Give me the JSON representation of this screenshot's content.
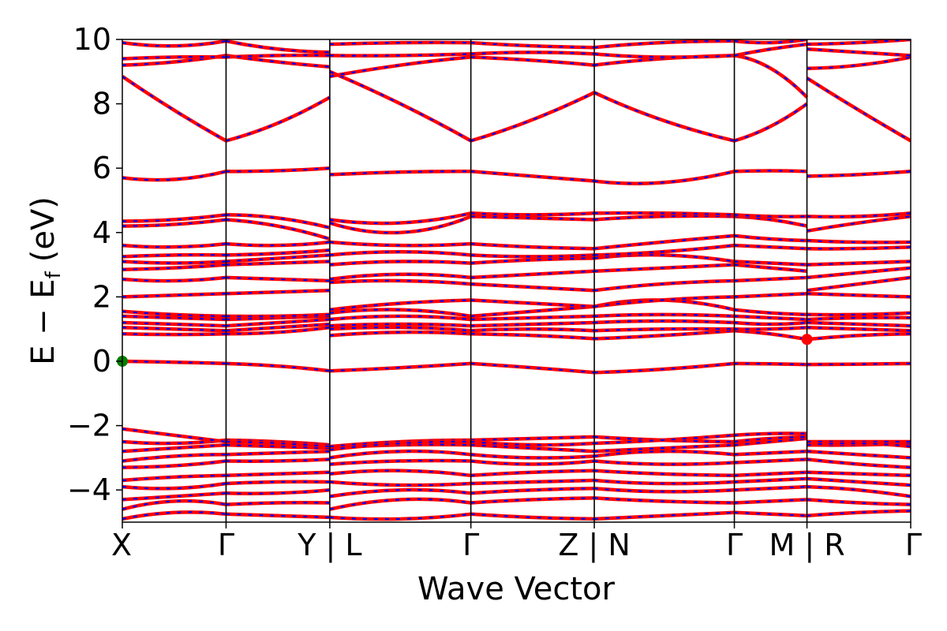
{
  "chart_data": {
    "type": "line",
    "xlabel": "Wave Vector",
    "ylabel": "E − E",
    "ylabel_sub": "f",
    "ylabel_unit": "(eV)",
    "ylim": [
      -5,
      10
    ],
    "yticks": [
      {
        "value": -4,
        "label": "−4"
      },
      {
        "value": -2,
        "label": "−2"
      },
      {
        "value": 0,
        "label": "0"
      },
      {
        "value": 2,
        "label": "2"
      },
      {
        "value": 4,
        "label": "4"
      },
      {
        "value": 6,
        "label": "6"
      },
      {
        "value": 8,
        "label": "8"
      },
      {
        "value": 10,
        "label": "10"
      }
    ],
    "xlim": [
      0,
      7.6
    ],
    "kpoints": [
      {
        "label": "X",
        "x": 0
      },
      {
        "label": "Γ",
        "x": 1.0
      },
      {
        "label": "Y | L",
        "x": 2.0
      },
      {
        "label": "Γ",
        "x": 3.36
      },
      {
        "label": "Z | N",
        "x": 4.55
      },
      {
        "label": "Γ",
        "x": 5.9
      },
      {
        "label": "M | R",
        "x": 6.6
      },
      {
        "label": "Γ",
        "x": 7.6
      }
    ],
    "vertical_lines": [
      1.0,
      2.0,
      3.36,
      4.55,
      5.9,
      6.6
    ],
    "line_style": {
      "color": "#ff0000",
      "overlay_color": "#0000ff",
      "overlay_dashed": true
    },
    "markers": [
      {
        "x": 0,
        "y": 0.0,
        "color": "#008000",
        "label": "VBM"
      },
      {
        "x": 6.6,
        "y": 0.68,
        "color": "#ff0000",
        "label": "CBM"
      }
    ],
    "segments": [
      {
        "x_start": 0,
        "x_end": 1.0,
        "x_mid": 0.5,
        "bands": [
          [
            -4.9,
            -4.7,
            -4.75
          ],
          [
            -4.6,
            -4.35,
            -4.45
          ],
          [
            -4.3,
            -4.2,
            -4.1
          ],
          [
            -3.9,
            -3.95,
            -3.8
          ],
          [
            -3.7,
            -3.6,
            -3.55
          ],
          [
            -3.3,
            -3.25,
            -3.1
          ],
          [
            -3.1,
            -2.95,
            -2.9
          ],
          [
            -2.8,
            -2.7,
            -2.6
          ],
          [
            -2.5,
            -2.55,
            -2.45
          ],
          [
            -2.1,
            -2.3,
            -2.5
          ],
          [
            0.0,
            -0.03,
            -0.07
          ],
          [
            0.85,
            0.83,
            0.85
          ],
          [
            1.05,
            1.0,
            0.95
          ],
          [
            1.2,
            1.15,
            1.1
          ],
          [
            1.4,
            1.35,
            1.3
          ],
          [
            1.55,
            1.45,
            1.4
          ],
          [
            2.0,
            2.05,
            2.1
          ],
          [
            2.55,
            2.5,
            2.6
          ],
          [
            2.85,
            2.9,
            3.0
          ],
          [
            3.1,
            3.05,
            3.1
          ],
          [
            3.25,
            3.3,
            3.3
          ],
          [
            3.6,
            3.55,
            3.65
          ],
          [
            4.2,
            4.25,
            4.4
          ],
          [
            4.35,
            4.4,
            4.55
          ],
          [
            5.7,
            5.65,
            5.9
          ],
          [
            8.85,
            7.8,
            6.85
          ],
          [
            9.2,
            9.3,
            9.5
          ],
          [
            9.4,
            9.45,
            9.45
          ],
          [
            9.9,
            9.8,
            9.95
          ]
        ]
      },
      {
        "x_start": 1.0,
        "x_end": 2.0,
        "x_mid": 1.5,
        "bands": [
          [
            -4.75,
            -4.8,
            -4.85
          ],
          [
            -4.45,
            -4.4,
            -4.4
          ],
          [
            -4.1,
            -4.1,
            -4.0
          ],
          [
            -3.8,
            -3.75,
            -3.75
          ],
          [
            -3.55,
            -3.5,
            -3.45
          ],
          [
            -3.1,
            -3.1,
            -3.05
          ],
          [
            -2.9,
            -2.85,
            -2.8
          ],
          [
            -2.6,
            -2.65,
            -2.7
          ],
          [
            -2.45,
            -2.5,
            -2.6
          ],
          [
            -2.5,
            -2.55,
            -2.65
          ],
          [
            -0.07,
            -0.15,
            -0.3
          ],
          [
            0.85,
            0.9,
            1.05
          ],
          [
            0.95,
            1.05,
            1.15
          ],
          [
            1.1,
            1.2,
            1.3
          ],
          [
            1.3,
            1.35,
            1.4
          ],
          [
            1.4,
            1.4,
            1.45
          ],
          [
            2.1,
            2.15,
            2.2
          ],
          [
            2.6,
            2.55,
            2.5
          ],
          [
            3.0,
            3.05,
            3.1
          ],
          [
            3.1,
            3.2,
            3.3
          ],
          [
            3.3,
            3.35,
            3.45
          ],
          [
            3.65,
            3.6,
            3.7
          ],
          [
            4.4,
            4.2,
            3.8
          ],
          [
            4.55,
            4.45,
            4.15
          ],
          [
            5.9,
            5.92,
            6.0
          ],
          [
            6.85,
            7.4,
            8.2
          ],
          [
            9.5,
            9.3,
            9.15
          ],
          [
            9.45,
            9.5,
            9.5
          ],
          [
            9.95,
            9.7,
            9.6
          ]
        ]
      },
      {
        "x_start": 2.0,
        "x_end": 3.36,
        "x_mid": 2.68,
        "bands": [
          [
            -4.85,
            -4.9,
            -4.75
          ],
          [
            -4.6,
            -4.3,
            -4.4
          ],
          [
            -4.2,
            -4.0,
            -4.1
          ],
          [
            -3.75,
            -3.85,
            -3.8
          ],
          [
            -3.5,
            -3.4,
            -3.55
          ],
          [
            -3.2,
            -3.1,
            -3.1
          ],
          [
            -3.0,
            -2.8,
            -2.9
          ],
          [
            -2.7,
            -2.6,
            -2.6
          ],
          [
            -2.65,
            -2.5,
            -2.45
          ],
          [
            -2.75,
            -2.55,
            -2.5
          ],
          [
            -0.3,
            -0.2,
            -0.07
          ],
          [
            0.8,
            0.9,
            0.85
          ],
          [
            1.0,
            1.05,
            0.95
          ],
          [
            1.1,
            1.15,
            1.1
          ],
          [
            1.3,
            1.4,
            1.3
          ],
          [
            1.5,
            1.6,
            1.4
          ],
          [
            1.6,
            1.8,
            1.9
          ],
          [
            2.45,
            2.5,
            2.4
          ],
          [
            2.55,
            2.7,
            2.6
          ],
          [
            3.0,
            3.1,
            3.05
          ],
          [
            3.3,
            3.4,
            3.3
          ],
          [
            3.7,
            3.6,
            3.65
          ],
          [
            4.3,
            4.0,
            4.5
          ],
          [
            4.4,
            4.3,
            4.6
          ],
          [
            5.8,
            5.88,
            5.9
          ],
          [
            9.0,
            8.0,
            6.85
          ],
          [
            8.85,
            9.2,
            9.45
          ],
          [
            9.5,
            9.5,
            9.55
          ],
          [
            9.85,
            9.9,
            9.9
          ]
        ]
      },
      {
        "x_start": 3.36,
        "x_end": 4.55,
        "x_mid": 3.95,
        "bands": [
          [
            -4.75,
            -4.85,
            -4.9
          ],
          [
            -4.4,
            -4.3,
            -4.25
          ],
          [
            -4.1,
            -4.0,
            -3.95
          ],
          [
            -3.8,
            -3.75,
            -3.7
          ],
          [
            -3.55,
            -3.45,
            -3.4
          ],
          [
            -3.1,
            -3.2,
            -3.1
          ],
          [
            -2.9,
            -3.0,
            -2.95
          ],
          [
            -2.6,
            -2.7,
            -2.8
          ],
          [
            -2.45,
            -2.4,
            -2.35
          ],
          [
            -2.5,
            -2.6,
            -2.55
          ],
          [
            -0.07,
            -0.2,
            -0.35
          ],
          [
            0.85,
            0.8,
            0.7
          ],
          [
            0.95,
            1.0,
            0.95
          ],
          [
            1.1,
            1.15,
            1.2
          ],
          [
            1.3,
            1.35,
            1.4
          ],
          [
            1.4,
            1.55,
            1.7
          ],
          [
            1.9,
            1.8,
            1.7
          ],
          [
            2.4,
            2.3,
            2.2
          ],
          [
            2.6,
            2.7,
            2.8
          ],
          [
            3.05,
            3.15,
            3.2
          ],
          [
            3.3,
            3.25,
            3.3
          ],
          [
            3.65,
            3.55,
            3.5
          ],
          [
            4.5,
            4.45,
            4.4
          ],
          [
            4.6,
            4.55,
            4.6
          ],
          [
            5.9,
            5.75,
            5.6
          ],
          [
            6.85,
            7.5,
            8.35
          ],
          [
            9.45,
            9.35,
            9.2
          ],
          [
            9.55,
            9.6,
            9.55
          ],
          [
            9.9,
            9.8,
            9.75
          ]
        ]
      },
      {
        "x_start": 4.55,
        "x_end": 5.9,
        "x_mid": 5.2,
        "bands": [
          [
            -4.9,
            -4.8,
            -4.7
          ],
          [
            -4.25,
            -4.35,
            -4.4
          ],
          [
            -3.95,
            -4.05,
            -4.0
          ],
          [
            -3.7,
            -3.8,
            -3.75
          ],
          [
            -3.4,
            -3.5,
            -3.55
          ],
          [
            -3.1,
            -3.2,
            -3.15
          ],
          [
            -2.95,
            -2.8,
            -2.9
          ],
          [
            -2.8,
            -2.7,
            -2.6
          ],
          [
            -2.35,
            -2.45,
            -2.5
          ],
          [
            -2.55,
            -2.45,
            -2.3
          ],
          [
            -0.35,
            -0.25,
            -0.07
          ],
          [
            0.7,
            0.8,
            0.95
          ],
          [
            0.95,
            1.0,
            1.0
          ],
          [
            1.2,
            1.25,
            1.2
          ],
          [
            1.4,
            1.45,
            1.4
          ],
          [
            1.7,
            1.9,
            1.6
          ],
          [
            1.7,
            1.9,
            2.0
          ],
          [
            2.2,
            2.4,
            2.5
          ],
          [
            2.8,
            2.9,
            3.0
          ],
          [
            3.2,
            3.3,
            3.1
          ],
          [
            3.3,
            3.4,
            3.6
          ],
          [
            3.5,
            3.7,
            3.9
          ],
          [
            4.4,
            4.5,
            4.5
          ],
          [
            4.6,
            4.6,
            4.55
          ],
          [
            5.6,
            5.55,
            5.9
          ],
          [
            8.35,
            7.5,
            6.85
          ],
          [
            9.2,
            9.4,
            9.5
          ],
          [
            9.55,
            9.45,
            9.5
          ],
          [
            9.75,
            9.9,
            9.95
          ]
        ]
      },
      {
        "x_start": 5.9,
        "x_end": 6.6,
        "x_mid": 6.25,
        "bands": [
          [
            -4.7,
            -4.75,
            -4.8
          ],
          [
            -4.4,
            -4.35,
            -4.3
          ],
          [
            -4.0,
            -3.95,
            -3.9
          ],
          [
            -3.75,
            -3.7,
            -3.65
          ],
          [
            -3.55,
            -3.5,
            -3.45
          ],
          [
            -3.15,
            -3.1,
            -3.05
          ],
          [
            -2.9,
            -2.85,
            -2.8
          ],
          [
            -2.6,
            -2.5,
            -2.4
          ],
          [
            -2.5,
            -2.4,
            -2.35
          ],
          [
            -2.3,
            -2.25,
            -2.25
          ],
          [
            -0.07,
            -0.08,
            -0.1
          ],
          [
            0.95,
            0.85,
            0.68
          ],
          [
            1.0,
            1.0,
            1.05
          ],
          [
            1.2,
            1.15,
            1.2
          ],
          [
            1.4,
            1.35,
            1.3
          ],
          [
            1.6,
            1.5,
            1.45
          ],
          [
            2.0,
            2.05,
            2.1
          ],
          [
            2.5,
            2.55,
            2.6
          ],
          [
            3.0,
            2.9,
            2.8
          ],
          [
            3.1,
            3.05,
            3.0
          ],
          [
            3.6,
            3.55,
            3.5
          ],
          [
            3.9,
            3.8,
            3.75
          ],
          [
            4.5,
            4.4,
            4.2
          ],
          [
            4.55,
            4.5,
            4.5
          ],
          [
            5.9,
            5.92,
            5.9
          ],
          [
            6.85,
            7.3,
            8.0
          ],
          [
            9.5,
            9.1,
            8.2
          ],
          [
            9.5,
            9.7,
            9.85
          ],
          [
            9.95,
            9.9,
            10.0
          ]
        ]
      },
      {
        "x_start": 6.6,
        "x_end": 7.6,
        "x_mid": 7.1,
        "bands": [
          [
            -4.8,
            -4.7,
            -4.65
          ],
          [
            -4.3,
            -4.4,
            -4.45
          ],
          [
            -3.9,
            -4.0,
            -4.2
          ],
          [
            -3.65,
            -3.75,
            -3.85
          ],
          [
            -3.45,
            -3.5,
            -3.55
          ],
          [
            -3.05,
            -3.2,
            -3.3
          ],
          [
            -2.8,
            -2.9,
            -3.0
          ],
          [
            -2.6,
            -2.6,
            -2.55
          ],
          [
            -2.5,
            -2.5,
            -2.5
          ],
          [
            -2.6,
            -2.55,
            -2.65
          ],
          [
            -0.1,
            -0.09,
            -0.07
          ],
          [
            0.68,
            0.8,
            0.85
          ],
          [
            1.05,
            1.0,
            0.95
          ],
          [
            1.2,
            1.15,
            1.1
          ],
          [
            1.3,
            1.35,
            1.35
          ],
          [
            1.45,
            1.45,
            1.5
          ],
          [
            2.1,
            2.05,
            2.0
          ],
          [
            2.2,
            2.4,
            2.6
          ],
          [
            2.6,
            2.75,
            2.9
          ],
          [
            3.0,
            3.05,
            3.1
          ],
          [
            3.5,
            3.5,
            3.55
          ],
          [
            3.75,
            3.7,
            3.7
          ],
          [
            4.05,
            4.3,
            4.5
          ],
          [
            4.5,
            4.5,
            4.6
          ],
          [
            5.75,
            5.8,
            5.9
          ],
          [
            8.8,
            7.8,
            6.85
          ],
          [
            9.1,
            9.2,
            9.45
          ],
          [
            9.7,
            9.6,
            9.5
          ],
          [
            9.85,
            9.9,
            10.0
          ]
        ]
      }
    ]
  }
}
